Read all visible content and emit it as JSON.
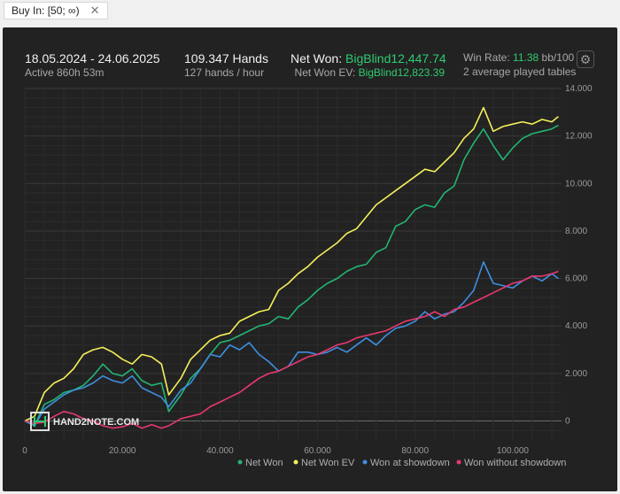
{
  "filter_chip": {
    "label": "Buy In: [50; ∞)",
    "close_icon": "✕"
  },
  "header": {
    "date_range": "18.05.2024 - 24.06.2025",
    "active": "Active 860h 53m",
    "hands": "109.347 Hands",
    "hands_rate": "127 hands / hour",
    "net_won_label": "Net Won:",
    "net_won_value": "BigBlind12,447.74",
    "net_won_ev_label": "Net Won  EV:",
    "net_won_ev_value": "BigBlind12,823.39",
    "win_rate_label": "Win Rate:",
    "win_rate_value": "11.38",
    "win_rate_unit": "bb/100",
    "tables": "2 average played tables",
    "settings_icon": "⚙"
  },
  "watermark": "HAND2NOTE.COM",
  "colors": {
    "net_won": "#22b573",
    "net_won_ev": "#f5f05a",
    "won_at_showdown": "#3d8fe0",
    "won_without_showdown": "#e8386d",
    "accent_green": "#2ecc71"
  },
  "chart_data": {
    "type": "line",
    "xlim": [
      0,
      110000
    ],
    "ylim": [
      -800,
      14000
    ],
    "x_ticks": [
      0,
      20000,
      40000,
      60000,
      80000,
      100000
    ],
    "x_tick_labels": [
      "0",
      "20.000",
      "40.000",
      "60.000",
      "80.000",
      "100.000"
    ],
    "y_ticks": [
      0,
      2000,
      4000,
      6000,
      8000,
      10000,
      12000,
      14000
    ],
    "y_tick_labels": [
      "0",
      "2.000",
      "4.000",
      "6.000",
      "8.000",
      "10.000",
      "12.000",
      "14.000"
    ],
    "legend_position": "bottom-right",
    "grid": true,
    "series": [
      {
        "name": "Net Won",
        "color": "#22b573",
        "points": [
          [
            0,
            0
          ],
          [
            2000,
            -200
          ],
          [
            4000,
            700
          ],
          [
            6000,
            900
          ],
          [
            8000,
            1200
          ],
          [
            10000,
            1300
          ],
          [
            12000,
            1500
          ],
          [
            14000,
            1900
          ],
          [
            16000,
            2400
          ],
          [
            18000,
            2000
          ],
          [
            20000,
            1900
          ],
          [
            22000,
            2200
          ],
          [
            24000,
            1700
          ],
          [
            26000,
            1500
          ],
          [
            28000,
            1600
          ],
          [
            29500,
            400
          ],
          [
            32000,
            1100
          ],
          [
            34000,
            1800
          ],
          [
            36000,
            2200
          ],
          [
            38000,
            2800
          ],
          [
            40000,
            3300
          ],
          [
            42000,
            3400
          ],
          [
            44000,
            3600
          ],
          [
            46000,
            3800
          ],
          [
            48000,
            4000
          ],
          [
            50000,
            4100
          ],
          [
            52000,
            4400
          ],
          [
            54000,
            4300
          ],
          [
            56000,
            4800
          ],
          [
            58000,
            5100
          ],
          [
            60000,
            5500
          ],
          [
            62000,
            5800
          ],
          [
            64000,
            6000
          ],
          [
            66000,
            6300
          ],
          [
            68000,
            6500
          ],
          [
            70000,
            6600
          ],
          [
            72000,
            7100
          ],
          [
            74000,
            7300
          ],
          [
            76000,
            8200
          ],
          [
            78000,
            8400
          ],
          [
            80000,
            8900
          ],
          [
            82000,
            9100
          ],
          [
            84000,
            9000
          ],
          [
            86000,
            9600
          ],
          [
            88000,
            9900
          ],
          [
            90000,
            11000
          ],
          [
            92000,
            11700
          ],
          [
            94000,
            12300
          ],
          [
            96000,
            11600
          ],
          [
            98000,
            11000
          ],
          [
            100000,
            11500
          ],
          [
            102000,
            11900
          ],
          [
            104000,
            12100
          ],
          [
            106000,
            12200
          ],
          [
            108000,
            12300
          ],
          [
            109347,
            12447.74
          ]
        ]
      },
      {
        "name": "Net Won  EV",
        "color": "#f5f05a",
        "points": [
          [
            0,
            0
          ],
          [
            2000,
            200
          ],
          [
            4000,
            1200
          ],
          [
            6000,
            1600
          ],
          [
            8000,
            1800
          ],
          [
            10000,
            2200
          ],
          [
            12000,
            2800
          ],
          [
            14000,
            3000
          ],
          [
            16000,
            3100
          ],
          [
            18000,
            2900
          ],
          [
            20000,
            2600
          ],
          [
            22000,
            2400
          ],
          [
            24000,
            2800
          ],
          [
            26000,
            2700
          ],
          [
            28000,
            2400
          ],
          [
            29500,
            1100
          ],
          [
            32000,
            1800
          ],
          [
            34000,
            2600
          ],
          [
            36000,
            3000
          ],
          [
            38000,
            3400
          ],
          [
            40000,
            3600
          ],
          [
            42000,
            3700
          ],
          [
            44000,
            4200
          ],
          [
            46000,
            4400
          ],
          [
            48000,
            4600
          ],
          [
            50000,
            4700
          ],
          [
            52000,
            5500
          ],
          [
            54000,
            5800
          ],
          [
            56000,
            6200
          ],
          [
            58000,
            6500
          ],
          [
            60000,
            6900
          ],
          [
            62000,
            7200
          ],
          [
            64000,
            7500
          ],
          [
            66000,
            7900
          ],
          [
            68000,
            8100
          ],
          [
            70000,
            8600
          ],
          [
            72000,
            9100
          ],
          [
            74000,
            9400
          ],
          [
            76000,
            9700
          ],
          [
            78000,
            10000
          ],
          [
            80000,
            10300
          ],
          [
            82000,
            10600
          ],
          [
            84000,
            10500
          ],
          [
            86000,
            10900
          ],
          [
            88000,
            11300
          ],
          [
            90000,
            11900
          ],
          [
            92000,
            12300
          ],
          [
            94000,
            13200
          ],
          [
            96000,
            12200
          ],
          [
            98000,
            12400
          ],
          [
            100000,
            12500
          ],
          [
            102000,
            12600
          ],
          [
            104000,
            12500
          ],
          [
            106000,
            12700
          ],
          [
            108000,
            12600
          ],
          [
            109347,
            12823.39
          ]
        ]
      },
      {
        "name": "Won at showdown",
        "color": "#3d8fe0",
        "points": [
          [
            0,
            0
          ],
          [
            2000,
            -200
          ],
          [
            4000,
            500
          ],
          [
            6000,
            800
          ],
          [
            8000,
            1100
          ],
          [
            10000,
            1300
          ],
          [
            12000,
            1400
          ],
          [
            14000,
            1600
          ],
          [
            16000,
            1900
          ],
          [
            18000,
            1700
          ],
          [
            20000,
            1600
          ],
          [
            22000,
            1900
          ],
          [
            24000,
            1400
          ],
          [
            26000,
            1200
          ],
          [
            28000,
            1000
          ],
          [
            29500,
            600
          ],
          [
            32000,
            1300
          ],
          [
            34000,
            1600
          ],
          [
            36000,
            2200
          ],
          [
            38000,
            2800
          ],
          [
            40000,
            2700
          ],
          [
            42000,
            3200
          ],
          [
            44000,
            3000
          ],
          [
            46000,
            3300
          ],
          [
            48000,
            2800
          ],
          [
            50000,
            2500
          ],
          [
            52000,
            2100
          ],
          [
            54000,
            2300
          ],
          [
            56000,
            2900
          ],
          [
            58000,
            2900
          ],
          [
            60000,
            2800
          ],
          [
            62000,
            2900
          ],
          [
            64000,
            3100
          ],
          [
            66000,
            2900
          ],
          [
            68000,
            3200
          ],
          [
            70000,
            3500
          ],
          [
            72000,
            3200
          ],
          [
            74000,
            3600
          ],
          [
            76000,
            3900
          ],
          [
            78000,
            4000
          ],
          [
            80000,
            4200
          ],
          [
            82000,
            4600
          ],
          [
            84000,
            4300
          ],
          [
            86000,
            4500
          ],
          [
            88000,
            4600
          ],
          [
            90000,
            5000
          ],
          [
            92000,
            5500
          ],
          [
            94000,
            6700
          ],
          [
            96000,
            5800
          ],
          [
            98000,
            5700
          ],
          [
            100000,
            5600
          ],
          [
            102000,
            5900
          ],
          [
            104000,
            6100
          ],
          [
            106000,
            5900
          ],
          [
            108000,
            6200
          ],
          [
            109347,
            6000
          ]
        ]
      },
      {
        "name": "Won without showdown",
        "color": "#e8386d",
        "points": [
          [
            0,
            0
          ],
          [
            2000,
            -100
          ],
          [
            4000,
            -50
          ],
          [
            6000,
            200
          ],
          [
            8000,
            400
          ],
          [
            10000,
            300
          ],
          [
            12000,
            100
          ],
          [
            14000,
            0
          ],
          [
            16000,
            -200
          ],
          [
            18000,
            -300
          ],
          [
            20000,
            -250
          ],
          [
            22000,
            -100
          ],
          [
            24000,
            -300
          ],
          [
            26000,
            -150
          ],
          [
            28000,
            -300
          ],
          [
            29500,
            -200
          ],
          [
            32000,
            100
          ],
          [
            34000,
            200
          ],
          [
            36000,
            300
          ],
          [
            38000,
            600
          ],
          [
            40000,
            800
          ],
          [
            42000,
            1000
          ],
          [
            44000,
            1200
          ],
          [
            46000,
            1500
          ],
          [
            48000,
            1800
          ],
          [
            50000,
            2000
          ],
          [
            52000,
            2100
          ],
          [
            54000,
            2300
          ],
          [
            56000,
            2500
          ],
          [
            58000,
            2700
          ],
          [
            60000,
            2800
          ],
          [
            62000,
            3000
          ],
          [
            64000,
            3200
          ],
          [
            66000,
            3300
          ],
          [
            68000,
            3500
          ],
          [
            70000,
            3600
          ],
          [
            72000,
            3700
          ],
          [
            74000,
            3800
          ],
          [
            76000,
            4000
          ],
          [
            78000,
            4200
          ],
          [
            80000,
            4300
          ],
          [
            82000,
            4400
          ],
          [
            84000,
            4600
          ],
          [
            86000,
            4400
          ],
          [
            88000,
            4700
          ],
          [
            90000,
            4800
          ],
          [
            92000,
            5000
          ],
          [
            94000,
            5200
          ],
          [
            96000,
            5400
          ],
          [
            98000,
            5600
          ],
          [
            100000,
            5800
          ],
          [
            102000,
            5900
          ],
          [
            104000,
            6100
          ],
          [
            106000,
            6100
          ],
          [
            108000,
            6200
          ],
          [
            109347,
            6300
          ]
        ]
      }
    ]
  }
}
